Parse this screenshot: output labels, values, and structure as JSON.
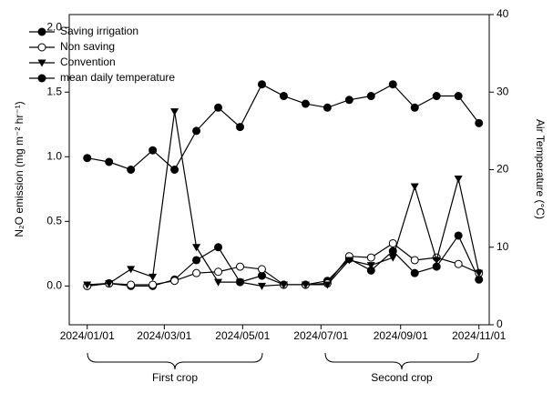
{
  "chart_data": {
    "type": "line",
    "x": [
      "2024/01/01",
      "2024/01/18",
      "2024/02/04",
      "2024/02/21",
      "2024/03/09",
      "2024/03/26",
      "2024/04/12",
      "2024/04/29",
      "2024/05/16",
      "2024/06/02",
      "2024/06/19",
      "2024/07/06",
      "2024/07/23",
      "2024/08/09",
      "2024/08/26",
      "2024/09/12",
      "2024/09/29",
      "2024/10/16",
      "2024/11/01"
    ],
    "series": [
      {
        "name": "Saving irrigation",
        "color": "#000000",
        "marker": "filled-circle",
        "values": [
          0.0,
          0.02,
          0.0,
          0.0,
          0.05,
          0.2,
          0.3,
          0.03,
          0.08,
          0.01,
          0.01,
          0.04,
          0.21,
          0.12,
          0.27,
          0.1,
          0.15,
          0.39,
          0.05
        ]
      },
      {
        "name": "Non saving",
        "color": "#000000",
        "marker": "open-circle",
        "values": [
          0.0,
          0.02,
          0.01,
          0.01,
          0.04,
          0.1,
          0.11,
          0.15,
          0.13,
          0.01,
          0.01,
          0.02,
          0.23,
          0.22,
          0.33,
          0.2,
          0.22,
          0.17,
          0.1
        ]
      },
      {
        "name": "Convention",
        "color": "#000000",
        "marker": "triangle-down",
        "values": [
          0.01,
          0.02,
          0.13,
          0.07,
          1.35,
          0.3,
          0.03,
          0.03,
          0.0,
          0.01,
          0.01,
          0.01,
          0.2,
          0.16,
          0.22,
          0.77,
          0.2,
          0.83,
          0.1
        ]
      },
      {
        "name": "mean daily temperature",
        "color": "#000000",
        "marker": "filled-circle",
        "axis": "y2",
        "values": [
          21.5,
          21,
          20,
          22.5,
          20,
          25,
          28,
          25.5,
          31,
          29.5,
          28.5,
          28,
          29,
          29.5,
          31,
          28,
          29.5,
          29.5,
          26
        ]
      }
    ],
    "ylabel": "N₂O emission (mg m⁻² hr⁻¹)",
    "y2label": "Air Temperature (°C)",
    "xlim": [
      "2023/12/18",
      "2024/11/09"
    ],
    "xticks": [
      "2024/01/01",
      "2024/03/01",
      "2024/05/01",
      "2024/07/01",
      "2024/09/01",
      "2024/11/01"
    ],
    "ylim": [
      -0.3,
      2.1
    ],
    "yticks": [
      {
        "value": 0,
        "label": "0.0"
      },
      {
        "value": 0.5,
        "label": "0.5"
      },
      {
        "value": 1,
        "label": "1.0"
      },
      {
        "value": 1.5,
        "label": "1.5"
      },
      {
        "value": 2,
        "label": "2.0"
      }
    ],
    "y2lim": [
      0,
      40
    ],
    "y2ticks": [
      0,
      10,
      20,
      30,
      40
    ],
    "legend": "upper left",
    "annotations": [
      "First crop",
      "Second crop"
    ]
  }
}
